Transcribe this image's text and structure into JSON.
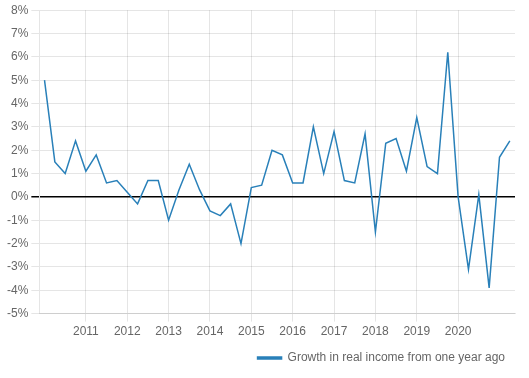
{
  "chart_data": {
    "type": "line",
    "categories": [
      null,
      null,
      null,
      null,
      "2011",
      null,
      null,
      null,
      "2012",
      null,
      null,
      null,
      "2013",
      null,
      null,
      null,
      "2014",
      null,
      null,
      null,
      "2015",
      null,
      null,
      null,
      "2016",
      null,
      null,
      null,
      "2017",
      null,
      null,
      null,
      "2018",
      null,
      null,
      null,
      "2019",
      null,
      null,
      null,
      "2020",
      null,
      null,
      null,
      null,
      null
    ],
    "series": [
      {
        "name": "Growth in real income from one year ago",
        "color": "#2980b9",
        "values": [
          5.0,
          1.5,
          1.0,
          2.4,
          1.1,
          1.8,
          0.6,
          0.7,
          0.2,
          -0.3,
          0.7,
          0.7,
          -1.0,
          0.3,
          1.4,
          0.3,
          -0.6,
          -0.8,
          -0.3,
          -2.0,
          0.4,
          0.5,
          2.0,
          1.8,
          0.6,
          0.6,
          3.0,
          1.0,
          2.8,
          0.7,
          0.6,
          2.7,
          -1.5,
          2.3,
          2.5,
          1.1,
          3.4,
          1.3,
          1.0,
          6.2,
          0.0,
          -3.1,
          0.1,
          -3.9,
          1.7,
          2.4
        ]
      }
    ],
    "ylim": [
      -5,
      8
    ],
    "yticks": [
      {
        "value": -5,
        "label": "-5%"
      },
      {
        "value": -4,
        "label": "-4%"
      },
      {
        "value": -3,
        "label": "-3%"
      },
      {
        "value": -2,
        "label": "-2%"
      },
      {
        "value": -1,
        "label": "-1%"
      },
      {
        "value": 0,
        "label": "0%"
      },
      {
        "value": 1,
        "label": "1%"
      },
      {
        "value": 2,
        "label": "2%"
      },
      {
        "value": 3,
        "label": "3%"
      },
      {
        "value": 4,
        "label": "4%"
      },
      {
        "value": 5,
        "label": "5%"
      },
      {
        "value": 6,
        "label": "6%"
      },
      {
        "value": 7,
        "label": "7%"
      },
      {
        "value": 8,
        "label": "8%"
      }
    ],
    "grid": true,
    "legend": "lower right"
  }
}
